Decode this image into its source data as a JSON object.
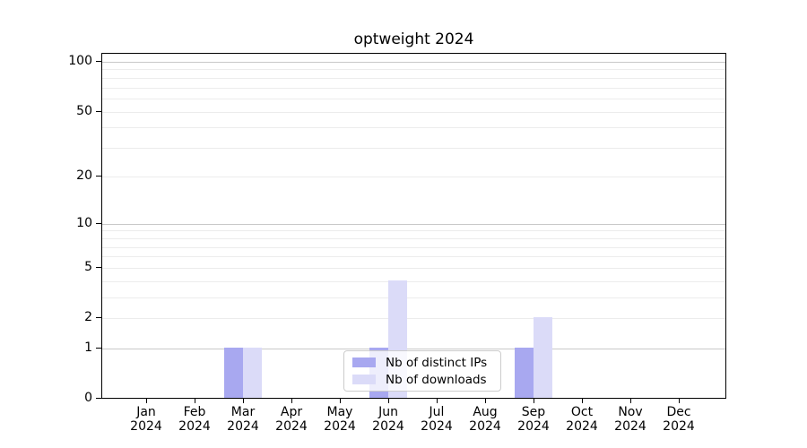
{
  "figure": {
    "title": "optweight 2024"
  },
  "chart_data": {
    "type": "bar",
    "title": "optweight 2024",
    "categories": [
      "Jan",
      "Feb",
      "Mar",
      "Apr",
      "May",
      "Jun",
      "Jul",
      "Aug",
      "Sep",
      "Oct",
      "Nov",
      "Dec"
    ],
    "year": "2024",
    "series": [
      {
        "name": "Nb of distinct IPs",
        "color": "#a8a8f0",
        "values": [
          0,
          0,
          1,
          0,
          0,
          1,
          0,
          0,
          1,
          0,
          0,
          0
        ]
      },
      {
        "name": "Nb of downloads",
        "color": "#dbdbf8",
        "values": [
          0,
          0,
          1,
          0,
          0,
          4,
          0,
          0,
          2,
          0,
          0,
          0
        ]
      }
    ],
    "y_axis": {
      "scale": "log1p",
      "ticks": [
        0,
        1,
        2,
        5,
        10,
        20,
        50,
        100
      ],
      "major_gridlines": [
        1,
        10,
        100
      ],
      "minor_gridlines": [
        2,
        3,
        4,
        5,
        6,
        7,
        8,
        9,
        20,
        30,
        40,
        50,
        60,
        70,
        80,
        90
      ],
      "ylim": [
        0,
        113
      ]
    },
    "legend": {
      "position": "lower center",
      "labels": [
        "Nb of distinct IPs",
        "Nb of downloads"
      ]
    },
    "colors": {
      "major_grid": "#c9c9c9",
      "minor_grid": "#ececec",
      "spine": "#000000"
    }
  }
}
